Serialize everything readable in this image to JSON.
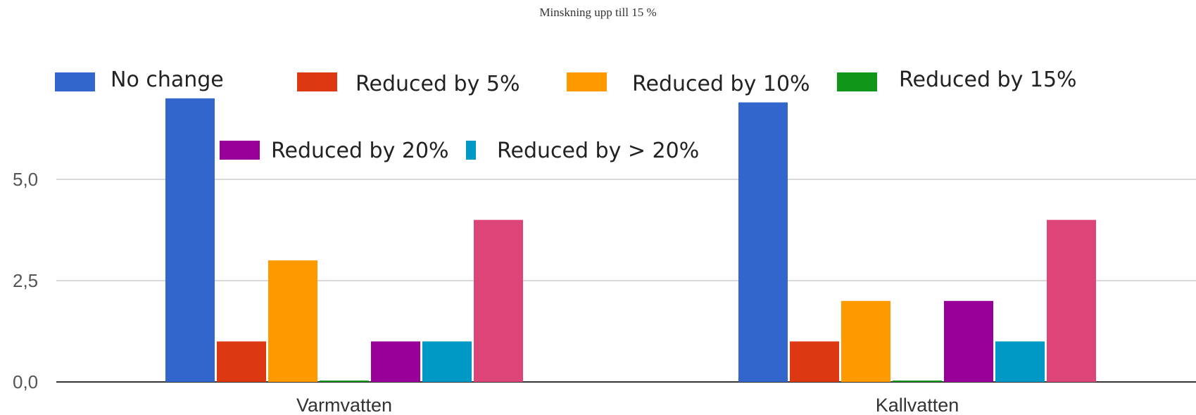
{
  "chart_data": {
    "type": "bar",
    "title": "Minskning upp till 15 %",
    "xlabel": "",
    "ylabel": "",
    "categories": [
      "Varmvatten",
      "Kallvatten"
    ],
    "ylim": [
      0,
      7
    ],
    "yticks": [
      {
        "value": 0,
        "label": "0,0"
      },
      {
        "value": 2.5,
        "label": "2,5"
      },
      {
        "value": 5,
        "label": "5,0"
      }
    ],
    "grid": true,
    "legend_position": "top",
    "series": [
      {
        "name": "No change",
        "color": "#3366cc",
        "values": [
          7,
          6.9
        ]
      },
      {
        "name": "Reduced by 5%",
        "color": "#dc3912",
        "values": [
          1,
          1
        ]
      },
      {
        "name": "Reduced by 10%",
        "color": "#ff9900",
        "values": [
          3,
          2
        ]
      },
      {
        "name": "Reduced by 15%",
        "color": "#109618",
        "values": [
          0,
          0
        ]
      },
      {
        "name": "Reduced by 20%",
        "color": "#990099",
        "values": [
          1,
          2
        ]
      },
      {
        "name": "Reduced by > 20%",
        "color": "#0099c6",
        "values": [
          1,
          1
        ]
      },
      {
        "name": "",
        "color": "#dd4477",
        "values": [
          4,
          4
        ]
      }
    ]
  }
}
